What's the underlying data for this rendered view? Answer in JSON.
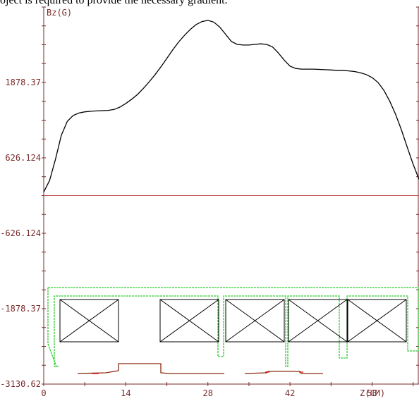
{
  "page": {
    "top_text": "oject is required to provide the necessary gradient."
  },
  "chart_data": {
    "type": "line",
    "ylabel": "Bz(G)",
    "xlabel": "Z(CM)",
    "xlim": [
      0,
      64
    ],
    "ylim": [
      -3130.62,
      3130.62
    ],
    "x_ticks": [
      "0",
      "14",
      "28",
      "42",
      "56"
    ],
    "y_ticks": [
      "1878.37",
      "626.124",
      "-626.124",
      "-1878.37",
      "-3130.62"
    ],
    "y_tick_values": [
      1878.37,
      626.124,
      -626.124,
      -1878.37,
      -3130.62
    ],
    "series": [
      {
        "x": [
          0,
          1,
          2,
          3,
          4,
          5,
          6,
          7,
          8,
          9,
          10,
          11,
          12,
          13,
          14,
          15,
          16,
          17,
          18,
          19,
          20,
          21,
          22,
          23,
          24,
          25,
          26,
          27,
          28,
          29,
          30,
          31,
          32,
          33,
          34,
          35,
          36,
          37,
          38,
          39,
          40,
          41,
          42,
          43,
          44,
          45,
          46,
          47,
          48,
          49,
          50,
          51,
          52,
          53,
          54,
          55,
          56,
          57,
          58,
          59,
          60,
          61,
          62,
          63,
          64
        ],
        "y": [
          60,
          250,
          600,
          1000,
          1230,
          1330,
          1370,
          1390,
          1400,
          1405,
          1410,
          1415,
          1430,
          1470,
          1530,
          1600,
          1680,
          1780,
          1890,
          2010,
          2140,
          2280,
          2420,
          2550,
          2660,
          2760,
          2840,
          2890,
          2910,
          2880,
          2800,
          2680,
          2560,
          2510,
          2500,
          2500,
          2510,
          2520,
          2510,
          2470,
          2370,
          2250,
          2150,
          2110,
          2100,
          2100,
          2100,
          2095,
          2090,
          2085,
          2080,
          2080,
          2070,
          2060,
          2040,
          2010,
          1960,
          1880,
          1750,
          1570,
          1350,
          1090,
          800,
          520,
          270
        ]
      }
    ],
    "zero_line": 0
  },
  "colors": {
    "curve": "#000000",
    "axis": "#7a2a2a",
    "zero_line": "#c05050",
    "outline": "#33cc33",
    "coil": "#000000",
    "lower_trace": "#8a2a10",
    "lower_trace_accent": "#dd0000"
  }
}
